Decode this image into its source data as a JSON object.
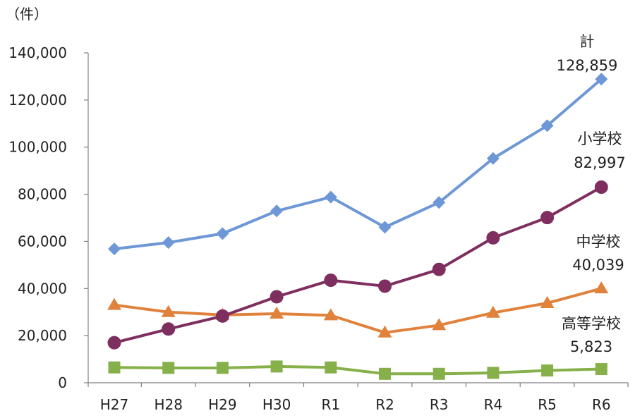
{
  "chart_data": {
    "type": "line",
    "unit_label": "（件）",
    "categories": [
      "H27",
      "H28",
      "H29",
      "H30",
      "R1",
      "R2",
      "R3",
      "R4",
      "R5",
      "R6"
    ],
    "ylim": [
      0,
      140000
    ],
    "yticks": [
      0,
      20000,
      40000,
      60000,
      80000,
      100000,
      120000,
      140000
    ],
    "ytick_labels": [
      "0",
      "20,000",
      "40,000",
      "60,000",
      "80,000",
      "100,000",
      "120,000",
      "140,000"
    ],
    "grid": false,
    "legend": "none",
    "series": [
      {
        "name": "計",
        "end_value_label": "128,859",
        "marker": "diamond",
        "color": "#6d97d6",
        "values": [
          56800,
          59500,
          63300,
          72900,
          78800,
          66000,
          76500,
          95200,
          109100,
          128859
        ]
      },
      {
        "name": "小学校",
        "end_value_label": "82,997",
        "marker": "circle",
        "color": "#7f2f5f",
        "values": [
          17000,
          22800,
          28300,
          36500,
          43500,
          41000,
          48100,
          61500,
          70100,
          82997
        ]
      },
      {
        "name": "中学校",
        "end_value_label": "40,039",
        "marker": "triangle",
        "color": "#e0823b",
        "values": [
          33000,
          30000,
          28800,
          29300,
          28600,
          21300,
          24400,
          29700,
          33800,
          40039
        ]
      },
      {
        "name": "高等学校",
        "end_value_label": "5,823",
        "marker": "square",
        "color": "#86b04a",
        "values": [
          6500,
          6300,
          6300,
          6900,
          6500,
          3800,
          3800,
          4200,
          5200,
          5823
        ]
      }
    ]
  }
}
